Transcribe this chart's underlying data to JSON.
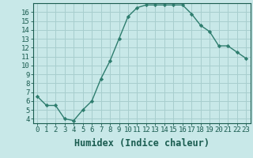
{
  "x": [
    0,
    1,
    2,
    3,
    4,
    5,
    6,
    7,
    8,
    9,
    10,
    11,
    12,
    13,
    14,
    15,
    16,
    17,
    18,
    19,
    20,
    21,
    22,
    23
  ],
  "y": [
    6.5,
    5.5,
    5.5,
    4.0,
    3.8,
    5.0,
    6.0,
    8.5,
    10.5,
    13.0,
    15.5,
    16.5,
    16.8,
    16.8,
    16.8,
    16.8,
    16.8,
    15.8,
    14.5,
    13.8,
    12.2,
    12.2,
    11.5,
    10.8
  ],
  "line_color": "#2e7d6e",
  "bg_color": "#c8e8e8",
  "grid_color": "#a8cece",
  "xlabel": "Humidex (Indice chaleur)",
  "ylim_min": 3.5,
  "ylim_max": 17.0,
  "xlim_min": -0.5,
  "xlim_max": 23.5,
  "yticks": [
    4,
    5,
    6,
    7,
    8,
    9,
    10,
    11,
    12,
    13,
    14,
    15,
    16
  ],
  "xticks": [
    0,
    1,
    2,
    3,
    4,
    5,
    6,
    7,
    8,
    9,
    10,
    11,
    12,
    13,
    14,
    15,
    16,
    17,
    18,
    19,
    20,
    21,
    22,
    23
  ],
  "marker": "D",
  "marker_size": 2.2,
  "line_width": 1.0,
  "xlabel_fontsize": 8.5,
  "tick_fontsize": 6.5,
  "text_color": "#1a5c50"
}
